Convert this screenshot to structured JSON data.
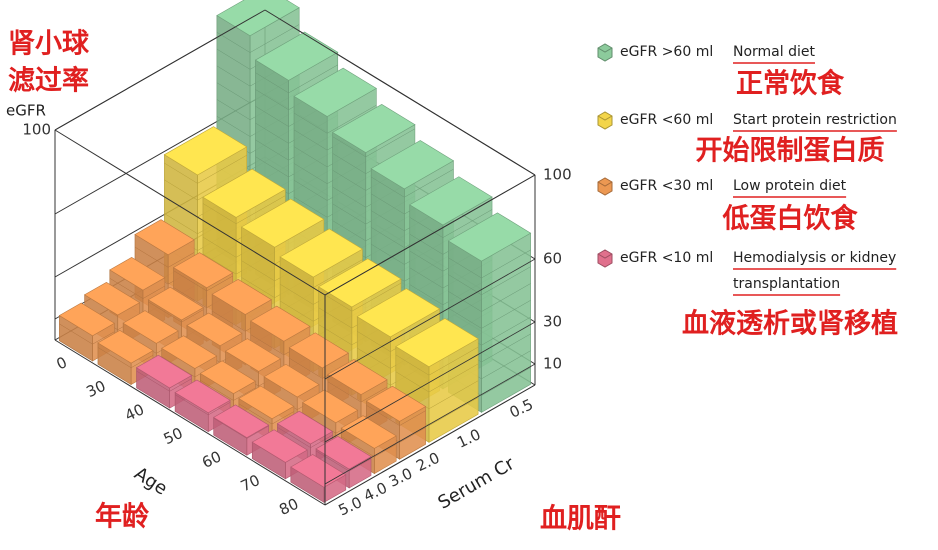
{
  "title_cn": [
    "肾小球",
    "滤过率"
  ],
  "y_axis": {
    "label": "eGFR",
    "left_ticks": [
      "100"
    ],
    "right_ticks": [
      "100",
      "60",
      "30",
      "10"
    ]
  },
  "age_axis": {
    "label": "Age",
    "label_cn": "年龄",
    "ticks": [
      "0",
      "30",
      "40",
      "50",
      "60",
      "70",
      "80"
    ]
  },
  "cr_axis": {
    "label": "Serum Cr",
    "label_cn": "血肌酐",
    "ticks": [
      "0.5",
      "1.0",
      "2.0",
      "3.0",
      "4.0",
      "5.0"
    ]
  },
  "legend": [
    {
      "threshold": "eGFR >60 ml",
      "diet": [
        "Normal diet"
      ],
      "diet_cn": "正常饮食",
      "color": "#8ccb9c"
    },
    {
      "threshold": "eGFR <60 ml",
      "diet": [
        "Start protein restriction"
      ],
      "diet_cn": "开始限制蛋白质",
      "color": "#f3d54a"
    },
    {
      "threshold": "eGFR <30 ml",
      "diet": [
        "Low protein diet"
      ],
      "diet_cn": "低蛋白饮食",
      "color": "#ec9852"
    },
    {
      "threshold": "eGFR <10 ml",
      "diet": [
        "Hemodialysis or kidney",
        "transplantation"
      ],
      "diet_cn": "血液透析或肾移植",
      "color": "#e0708c"
    }
  ]
}
